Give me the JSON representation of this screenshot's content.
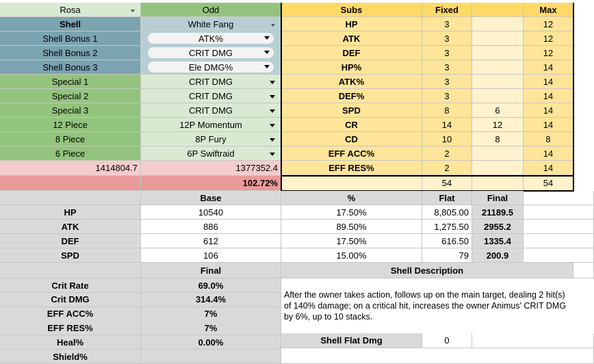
{
  "top": {
    "character": "Rosa",
    "mode": "Odd",
    "shell_label": "Shell",
    "shell_value": "White Fang",
    "rows": [
      {
        "label": "Shell Bonus 1",
        "value": "ATK%"
      },
      {
        "label": "Shell Bonus 2",
        "value": "CRIT DMG"
      },
      {
        "label": "Shell Bonus 3",
        "value": "Ele DMG%"
      },
      {
        "label": "Special 1",
        "value": "CRIT DMG"
      },
      {
        "label": "Special 2",
        "value": "CRIT DMG"
      },
      {
        "label": "Special 3",
        "value": "CRIT DMG"
      },
      {
        "label": "12 Piece",
        "value": "12P Momentum"
      },
      {
        "label": "8 Piece",
        "value": "8P Fury"
      },
      {
        "label": "6 Piece",
        "value": "6P Swiftraid"
      }
    ],
    "score_a": "1414804.7",
    "score_b": "1377352.4",
    "ratio": "102.72%"
  },
  "subs": {
    "headers": {
      "name": "Subs",
      "fixed": "Fixed",
      "extra": "",
      "max": "Max"
    },
    "rows": [
      {
        "name": "HP",
        "fixed": "3",
        "extra": "",
        "max": "12"
      },
      {
        "name": "ATK",
        "fixed": "3",
        "extra": "",
        "max": "12"
      },
      {
        "name": "DEF",
        "fixed": "3",
        "extra": "",
        "max": "12"
      },
      {
        "name": "HP%",
        "fixed": "3",
        "extra": "",
        "max": "14"
      },
      {
        "name": "ATK%",
        "fixed": "3",
        "extra": "",
        "max": "14"
      },
      {
        "name": "DEF%",
        "fixed": "3",
        "extra": "",
        "max": "14"
      },
      {
        "name": "SPD",
        "fixed": "8",
        "extra": "6",
        "max": "14"
      },
      {
        "name": "CR",
        "fixed": "14",
        "extra": "12",
        "max": "14"
      },
      {
        "name": "CD",
        "fixed": "10",
        "extra": "8",
        "max": "8"
      },
      {
        "name": "EFF ACC%",
        "fixed": "2",
        "extra": "",
        "max": "14"
      },
      {
        "name": "EFF RES%",
        "fixed": "2",
        "extra": "",
        "max": "14"
      }
    ],
    "total_fixed": "54",
    "total_max": "54"
  },
  "stats": {
    "headers": {
      "base": "Base",
      "pct": "%",
      "flat": "Flat",
      "final": "Final"
    },
    "rows": [
      {
        "name": "HP",
        "base": "10540",
        "pct": "17.50%",
        "flat": "8,805.00",
        "final": "21189.5"
      },
      {
        "name": "ATK",
        "base": "886",
        "pct": "89.50%",
        "flat": "1,275.50",
        "final": "2955.2"
      },
      {
        "name": "DEF",
        "base": "612",
        "pct": "17.50%",
        "flat": "616.50",
        "final": "1335.4"
      },
      {
        "name": "SPD",
        "base": "106",
        "pct": "15.00%",
        "flat": "79",
        "final": "200.9"
      }
    ]
  },
  "secondary": {
    "header": "Final",
    "rows": [
      {
        "name": "Crit Rate",
        "value": "69.0%"
      },
      {
        "name": "Crit DMG",
        "value": "314.4%"
      },
      {
        "name": "EFF ACC%",
        "value": "7%"
      },
      {
        "name": "EFF RES%",
        "value": "7%"
      },
      {
        "name": "Heal%",
        "value": "0.00%"
      },
      {
        "name": "Shield%",
        "value": ""
      }
    ]
  },
  "shell": {
    "title": "Shell Description",
    "description": "After the owner takes action, follows up on the main target, dealing 2 hit(s) of 140% damage; on a critical hit, increases the owner Animus' CRIT DMG by 6%, up to 10 stacks.",
    "flat_label": "Shell Flat Dmg",
    "flat_value": "0"
  }
}
